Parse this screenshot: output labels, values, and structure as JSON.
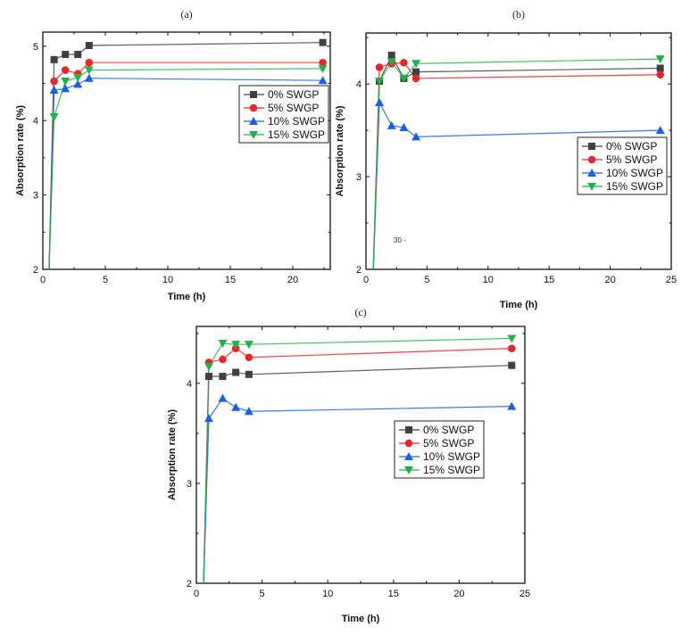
{
  "figure": {
    "stray_label": "30 -"
  },
  "chart_data": [
    {
      "type": "line",
      "title": "(a)",
      "xlabel": "Time (h)",
      "ylabel": "Absorption rate (%)",
      "xlim": [
        0,
        23
      ],
      "ylim": [
        2,
        5.19
      ],
      "xticks": [
        0,
        5,
        10,
        15,
        20
      ],
      "yticks": [
        2,
        3,
        4,
        5
      ],
      "legend": "right-upper",
      "grid": false,
      "series": [
        {
          "name": "0% SWGP",
          "color": "#404040",
          "marker": "square",
          "x": [
            0.5,
            0.9,
            1.8,
            2.8,
            3.7,
            22.4
          ],
          "y": [
            2.0,
            4.82,
            4.89,
            4.89,
            5.01,
            5.05
          ]
        },
        {
          "name": "5% SWGP",
          "color": "#e8262b",
          "marker": "circle",
          "x": [
            0.5,
            0.9,
            1.8,
            2.8,
            3.7,
            22.4
          ],
          "y": [
            2.0,
            4.53,
            4.68,
            4.63,
            4.78,
            4.78
          ]
        },
        {
          "name": "10% SWGP",
          "color": "#1a5fe6",
          "marker": "triangle-up",
          "x": [
            0.5,
            0.9,
            1.8,
            2.8,
            3.7,
            22.4
          ],
          "y": [
            2.0,
            4.41,
            4.43,
            4.49,
            4.57,
            4.54
          ]
        },
        {
          "name": "15% SWGP",
          "color": "#21b14b",
          "marker": "triangle-down",
          "x": [
            0.5,
            0.9,
            1.8,
            2.8,
            3.7,
            22.4
          ],
          "y": [
            2.0,
            4.05,
            4.53,
            4.58,
            4.68,
            4.7
          ]
        }
      ]
    },
    {
      "type": "line",
      "title": "(b)",
      "xlabel": "Time (h)",
      "ylabel": "Absorption rate (%)",
      "xlim": [
        0,
        25
      ],
      "ylim": [
        2,
        4.55
      ],
      "xticks": [
        0,
        5,
        10,
        15,
        20,
        25
      ],
      "yticks": [
        2,
        3,
        4
      ],
      "legend": "right-middle",
      "grid": false,
      "series": [
        {
          "name": "0% SWGP",
          "color": "#404040",
          "marker": "square",
          "x": [
            0.6,
            1.1,
            2.1,
            3.1,
            4.1,
            24.1
          ],
          "y": [
            2.0,
            4.03,
            4.31,
            4.06,
            4.13,
            4.17
          ]
        },
        {
          "name": "5% SWGP",
          "color": "#e8262b",
          "marker": "circle",
          "x": [
            0.6,
            1.1,
            2.1,
            3.1,
            4.1,
            24.1
          ],
          "y": [
            2.0,
            4.18,
            4.22,
            4.23,
            4.06,
            4.1
          ]
        },
        {
          "name": "10% SWGP",
          "color": "#1a5fe6",
          "marker": "triangle-up",
          "x": [
            0.6,
            1.1,
            2.1,
            3.1,
            4.1,
            24.1
          ],
          "y": [
            2.0,
            3.8,
            3.55,
            3.53,
            3.43,
            3.5
          ]
        },
        {
          "name": "15% SWGP",
          "color": "#21b14b",
          "marker": "triangle-down",
          "x": [
            0.6,
            1.1,
            2.1,
            3.1,
            4.1,
            24.1
          ],
          "y": [
            2.0,
            4.03,
            4.24,
            4.06,
            4.22,
            4.27
          ]
        }
      ]
    },
    {
      "type": "line",
      "title": "(c)",
      "xlabel": "Time (h)",
      "ylabel": "Absorption rate (%)",
      "xlim": [
        0,
        25
      ],
      "ylim": [
        2,
        4.57
      ],
      "xticks": [
        0,
        5,
        10,
        15,
        20,
        25
      ],
      "yticks": [
        2,
        3,
        4
      ],
      "legend": "right-middle",
      "grid": false,
      "series": [
        {
          "name": "0% SWGP",
          "color": "#404040",
          "marker": "square",
          "x": [
            0.55,
            0.95,
            2.0,
            3.0,
            4.0,
            24.0
          ],
          "y": [
            2.0,
            4.07,
            4.07,
            4.11,
            4.09,
            4.18
          ]
        },
        {
          "name": "5% SWGP",
          "color": "#e8262b",
          "marker": "circle",
          "x": [
            0.55,
            0.95,
            2.0,
            3.0,
            4.0,
            24.0
          ],
          "y": [
            2.0,
            4.21,
            4.24,
            4.35,
            4.26,
            4.35
          ]
        },
        {
          "name": "10% SWGP",
          "color": "#1a5fe6",
          "marker": "triangle-up",
          "x": [
            0.55,
            0.95,
            2.0,
            3.0,
            4.0,
            24.0
          ],
          "y": [
            2.0,
            3.65,
            3.85,
            3.76,
            3.72,
            3.77
          ]
        },
        {
          "name": "15% SWGP",
          "color": "#21b14b",
          "marker": "triangle-down",
          "x": [
            0.55,
            0.95,
            2.0,
            3.0,
            4.0,
            24.0
          ],
          "y": [
            2.0,
            4.17,
            4.4,
            4.39,
            4.39,
            4.45
          ]
        }
      ]
    }
  ]
}
